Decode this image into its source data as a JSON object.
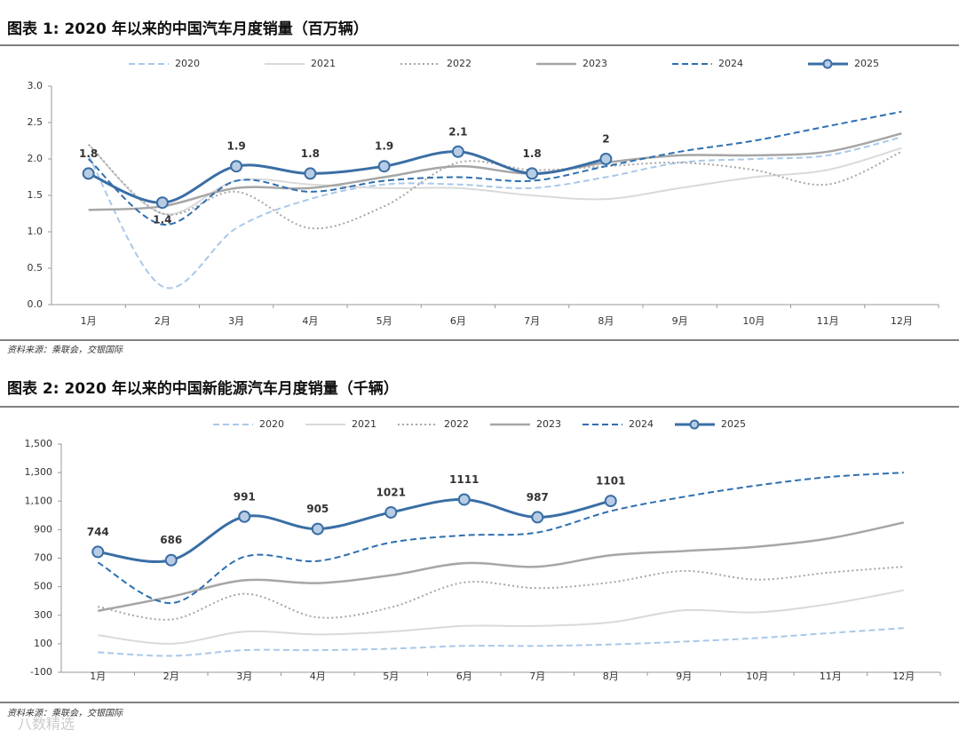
{
  "chart_data": [
    {
      "type": "line",
      "title": "图表 1: 2020 年以来的中国汽车月度销量（百万辆）",
      "note": "资料来源：乘联会，交银国际",
      "categories": [
        "1月",
        "2月",
        "3月",
        "4月",
        "5月",
        "6月",
        "7月",
        "8月",
        "9月",
        "10月",
        "11月",
        "12月"
      ],
      "ylim": [
        0,
        3
      ],
      "yticks": [
        {
          "value": 0,
          "label": "0.0"
        },
        0.5,
        {
          "value": 1,
          "label": "1.0"
        },
        1.5,
        {
          "value": 2,
          "label": "2.0"
        },
        2.5,
        {
          "value": 3,
          "label": "3.0"
        }
      ],
      "series": [
        {
          "name": "2020",
          "color": "#a9c8e8",
          "dash": "dashed",
          "values": [
            2.05,
            0.25,
            1.05,
            1.45,
            1.65,
            1.65,
            1.6,
            1.75,
            1.95,
            2.0,
            2.05,
            2.3
          ]
        },
        {
          "name": "2021",
          "color": "#d9d9d9",
          "dash": "solid",
          "values": [
            2.2,
            1.25,
            1.7,
            1.65,
            1.6,
            1.6,
            1.5,
            1.45,
            1.6,
            1.75,
            1.85,
            2.15
          ]
        },
        {
          "name": "2022",
          "color": "#a6a6a6",
          "dash": "dotted",
          "values": [
            2.2,
            1.25,
            1.55,
            1.05,
            1.35,
            1.95,
            1.85,
            1.9,
            1.95,
            1.85,
            1.65,
            2.1
          ]
        },
        {
          "name": "2023",
          "color": "#a6a6a6",
          "dash": "solid",
          "values": [
            1.3,
            1.35,
            1.6,
            1.6,
            1.75,
            1.9,
            1.8,
            1.95,
            2.05,
            2.05,
            2.1,
            2.35
          ]
        },
        {
          "name": "2024",
          "color": "#2e6fb0",
          "dash": "dashed",
          "values": [
            2.0,
            1.1,
            1.7,
            1.55,
            1.7,
            1.75,
            1.7,
            1.9,
            2.1,
            2.25,
            2.45,
            2.65
          ]
        },
        {
          "name": "2025",
          "color": "#3a6ea5",
          "dash": "solid",
          "markers": true,
          "data_labels": true,
          "values": [
            1.8,
            1.4,
            1.9,
            1.8,
            1.9,
            2.1,
            1.8,
            2.0,
            null,
            null,
            null,
            null
          ]
        }
      ]
    },
    {
      "type": "line",
      "title": "图表 2: 2020 年以来的中国新能源汽车月度销量（千辆）",
      "note": "资料来源：乘联会，交银国际",
      "categories": [
        "1月",
        "2月",
        "3月",
        "4月",
        "5月",
        "6月",
        "7月",
        "8月",
        "9月",
        "10月",
        "11月",
        "12月"
      ],
      "ylim": [
        -100,
        1500
      ],
      "yticks": [
        -100,
        100,
        300,
        500,
        700,
        900,
        {
          "value": 1100,
          "label": "1,100"
        },
        {
          "value": 1300,
          "label": "1,300"
        },
        {
          "value": 1500,
          "label": "1,500"
        }
      ],
      "series": [
        {
          "name": "2020",
          "color": "#a9c8e8",
          "dash": "dashed",
          "values": [
            40,
            15,
            55,
            55,
            65,
            85,
            85,
            95,
            115,
            140,
            175,
            210
          ]
        },
        {
          "name": "2021",
          "color": "#d9d9d9",
          "dash": "solid",
          "values": [
            160,
            100,
            185,
            165,
            185,
            225,
            225,
            250,
            335,
            320,
            380,
            475
          ]
        },
        {
          "name": "2022",
          "color": "#a6a6a6",
          "dash": "dotted",
          "values": [
            360,
            270,
            450,
            285,
            355,
            530,
            490,
            530,
            610,
            550,
            600,
            640
          ]
        },
        {
          "name": "2023",
          "color": "#a6a6a6",
          "dash": "solid",
          "values": [
            330,
            430,
            545,
            525,
            580,
            665,
            640,
            720,
            750,
            780,
            840,
            950
          ]
        },
        {
          "name": "2024",
          "color": "#2e6fb0",
          "dash": "dashed",
          "values": [
            670,
            385,
            710,
            680,
            810,
            860,
            880,
            1030,
            1130,
            1210,
            1270,
            1300
          ]
        },
        {
          "name": "2025",
          "color": "#3a6ea5",
          "dash": "solid",
          "markers": true,
          "data_labels": true,
          "values": [
            744,
            686,
            991,
            905,
            1021,
            1111,
            987,
            1101,
            null,
            null,
            null,
            null
          ]
        }
      ]
    }
  ],
  "watermark": "八数精选"
}
